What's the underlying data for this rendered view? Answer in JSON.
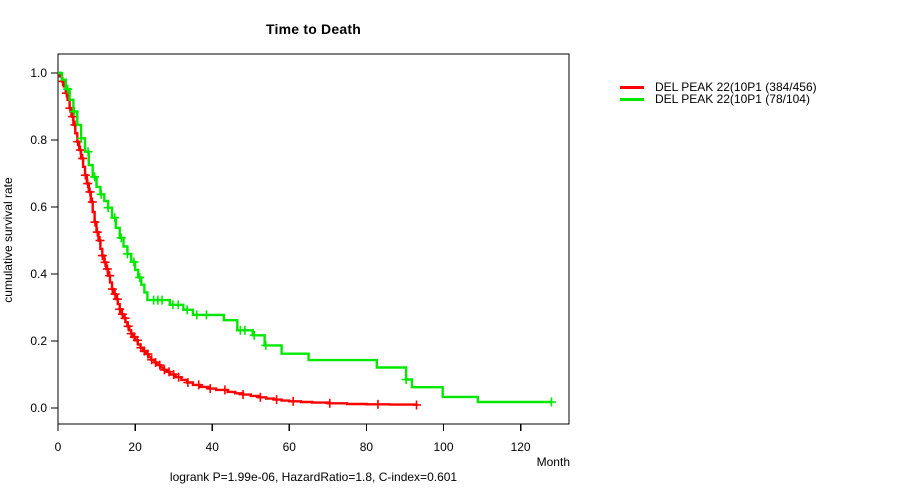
{
  "title": "Time to Death",
  "footer": "logrank P=1.99e-06, HazardRatio=1.8, C-index=0.601",
  "axes": {
    "x": {
      "label": "Month",
      "ticks": [
        0,
        20,
        40,
        60,
        80,
        100,
        120
      ]
    },
    "y": {
      "label": "cumulative survival rate",
      "ticks": [
        "0.0",
        "0.2",
        "0.4",
        "0.6",
        "0.8",
        "1.0"
      ]
    }
  },
  "legend": {
    "entries": [
      {
        "label": "DEL PEAK 22(10P1 (384/456)",
        "color": "#ff0000"
      },
      {
        "label": "DEL PEAK 22(10P1 (78/104)",
        "color": "#00e800"
      }
    ]
  },
  "colors": {
    "axis": "#000000",
    "background": "#ffffff"
  },
  "chart_data": {
    "type": "line",
    "subtype": "kaplan-meier-step",
    "title": "Time to Death",
    "xlabel": "Month",
    "ylabel": "cumulative survival rate",
    "xlim": [
      0,
      132.5
    ],
    "ylim": [
      -0.045,
      1.045
    ],
    "grid": false,
    "legend_position": "right-outside",
    "annotation": "logrank P=1.99e-06, HazardRatio=1.8, C-index=0.601",
    "series": [
      {
        "name": "DEL PEAK 22(10P1 (384/456)",
        "color": "#ff0000",
        "events_total": "384/456",
        "points": [
          [
            0,
            1.0
          ],
          [
            0.5,
            0.99
          ],
          [
            1,
            0.975
          ],
          [
            1.5,
            0.96
          ],
          [
            2,
            0.94
          ],
          [
            2.5,
            0.92
          ],
          [
            3,
            0.895
          ],
          [
            3.5,
            0.87
          ],
          [
            4,
            0.845
          ],
          [
            4.5,
            0.82
          ],
          [
            5,
            0.795
          ],
          [
            5.5,
            0.77
          ],
          [
            6,
            0.745
          ],
          [
            6.5,
            0.72
          ],
          [
            7,
            0.695
          ],
          [
            7.5,
            0.67
          ],
          [
            8,
            0.645
          ],
          [
            8.5,
            0.615
          ],
          [
            9,
            0.585
          ],
          [
            9.5,
            0.555
          ],
          [
            10,
            0.525
          ],
          [
            10.5,
            0.5
          ],
          [
            11,
            0.475
          ],
          [
            11.5,
            0.455
          ],
          [
            12,
            0.435
          ],
          [
            12.5,
            0.415
          ],
          [
            13,
            0.395
          ],
          [
            13.5,
            0.375
          ],
          [
            14,
            0.355
          ],
          [
            14.5,
            0.34
          ],
          [
            15,
            0.325
          ],
          [
            15.5,
            0.31
          ],
          [
            16,
            0.295
          ],
          [
            16.5,
            0.28
          ],
          [
            17,
            0.268
          ],
          [
            17.5,
            0.256
          ],
          [
            18,
            0.244
          ],
          [
            18.5,
            0.232
          ],
          [
            19,
            0.222
          ],
          [
            19.5,
            0.212
          ],
          [
            20,
            0.202
          ],
          [
            20.7,
            0.19
          ],
          [
            21.4,
            0.18
          ],
          [
            22.1,
            0.17
          ],
          [
            22.8,
            0.161
          ],
          [
            23.5,
            0.152
          ],
          [
            24.2,
            0.144
          ],
          [
            25,
            0.136
          ],
          [
            25.8,
            0.128
          ],
          [
            26.6,
            0.121
          ],
          [
            27.4,
            0.114
          ],
          [
            28.2,
            0.108
          ],
          [
            29,
            0.1
          ],
          [
            30.5,
            0.092
          ],
          [
            32,
            0.084
          ],
          [
            33.5,
            0.076
          ],
          [
            35,
            0.069
          ],
          [
            37,
            0.063
          ],
          [
            39,
            0.058
          ],
          [
            41,
            0.054
          ],
          [
            44,
            0.048
          ],
          [
            46,
            0.044
          ],
          [
            48,
            0.04
          ],
          [
            50,
            0.036
          ],
          [
            52,
            0.032
          ],
          [
            54,
            0.028
          ],
          [
            56,
            0.025
          ],
          [
            58,
            0.022
          ],
          [
            60,
            0.02
          ],
          [
            63,
            0.018
          ],
          [
            66,
            0.016
          ],
          [
            70,
            0.014
          ],
          [
            75,
            0.012
          ],
          [
            80,
            0.011
          ],
          [
            86,
            0.01
          ],
          [
            93,
            0.009
          ]
        ],
        "censor_months": [
          1.2,
          2.2,
          3.1,
          3.8,
          4.4,
          5.1,
          5.8,
          6.4,
          7.1,
          7.7,
          8.3,
          8.9,
          9.6,
          10.2,
          10.9,
          11.5,
          12.2,
          12.8,
          13.4,
          14.1,
          14.8,
          15.4,
          16,
          16.7,
          17.4,
          18.2,
          19,
          19.8,
          20.6,
          21.5,
          22.4,
          23.3,
          24.3,
          25.3,
          26.4,
          27.6,
          28.8,
          30,
          31.3,
          33.7,
          36.5,
          39.5,
          43.3,
          48,
          52.5,
          56.7,
          61,
          70.5,
          83,
          93
        ]
      },
      {
        "name": "DEL PEAK 22(10P1 (78/104)",
        "color": "#00e800",
        "events_total": "78/104",
        "points": [
          [
            0,
            1.0
          ],
          [
            1,
            0.98
          ],
          [
            2,
            0.952
          ],
          [
            3,
            0.92
          ],
          [
            4,
            0.885
          ],
          [
            5,
            0.845
          ],
          [
            6,
            0.805
          ],
          [
            7,
            0.765
          ],
          [
            8,
            0.725
          ],
          [
            9,
            0.69
          ],
          [
            10,
            0.66
          ],
          [
            11,
            0.638
          ],
          [
            12,
            0.618
          ],
          [
            13,
            0.598
          ],
          [
            14,
            0.568
          ],
          [
            15,
            0.538
          ],
          [
            16,
            0.508
          ],
          [
            17,
            0.482
          ],
          [
            18,
            0.46
          ],
          [
            19,
            0.436
          ],
          [
            20,
            0.412
          ],
          [
            20.8,
            0.39
          ],
          [
            21.6,
            0.368
          ],
          [
            22.4,
            0.345
          ],
          [
            23.2,
            0.322
          ],
          [
            29,
            0.308
          ],
          [
            32.5,
            0.293
          ],
          [
            35,
            0.278
          ],
          [
            43,
            0.262
          ],
          [
            46.5,
            0.232
          ],
          [
            50.5,
            0.217
          ],
          [
            53.6,
            0.187
          ],
          [
            58,
            0.162
          ],
          [
            65,
            0.143
          ],
          [
            82.7,
            0.121
          ],
          [
            90.3,
            0.085
          ],
          [
            91.8,
            0.062
          ],
          [
            99.8,
            0.033
          ],
          [
            108.9,
            0.018
          ],
          [
            128,
            0.018
          ]
        ],
        "censor_months": [
          2.5,
          4.2,
          6,
          7.8,
          9.5,
          11.2,
          13,
          14.7,
          16.4,
          18,
          19.7,
          21.2,
          24.8,
          25.9,
          27,
          29.8,
          31.2,
          33.5,
          36,
          38.5,
          47.3,
          48.5,
          50.9,
          53.9,
          90.3,
          128
        ]
      }
    ]
  }
}
